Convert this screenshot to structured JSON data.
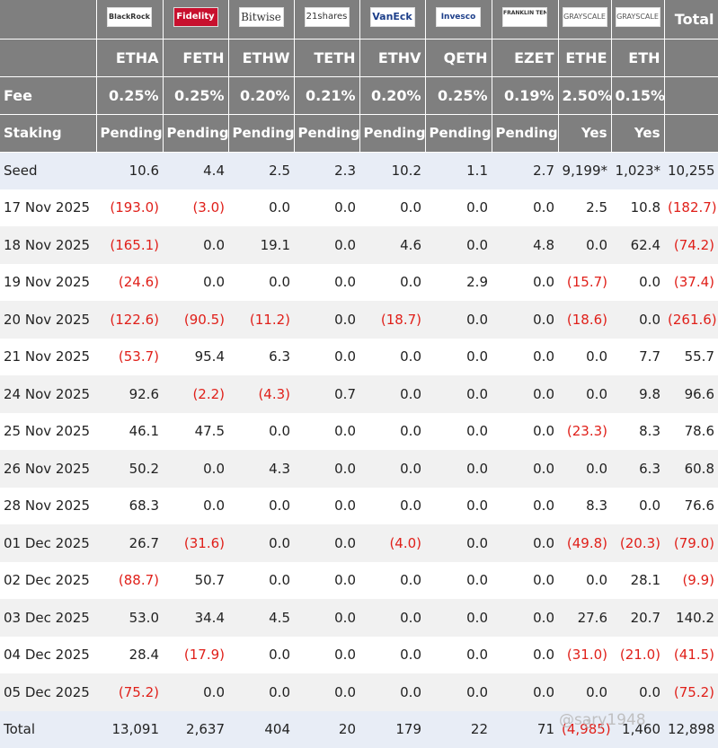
{
  "colors": {
    "header_bg": "#7f7f7f",
    "negative": "#e0201a",
    "seed_row_bg": "#e8edf6",
    "stripe_bg": "#f1f1f1"
  },
  "header": {
    "issuers": [
      "BlackRock",
      "Fidelity",
      "Bitwise",
      "21shares",
      "VanEck",
      "Invesco",
      "FRANKLIN TEMPLETON",
      "GRAYSCALE",
      "GRAYSCALE"
    ],
    "total_label": "Total",
    "tickers": [
      "ETHA",
      "FETH",
      "ETHW",
      "TETH",
      "ETHV",
      "QETH",
      "EZET",
      "ETHE",
      "ETH"
    ],
    "fee_label": "Fee",
    "fees": [
      "0.25%",
      "0.25%",
      "0.20%",
      "0.21%",
      "0.20%",
      "0.25%",
      "0.19%",
      "2.50%",
      "0.15%"
    ],
    "staking_label": "Staking",
    "staking": [
      "Pending",
      "Pending",
      "Pending",
      "Pending",
      "Pending",
      "Pending",
      "Pending",
      "Yes",
      "Yes"
    ]
  },
  "chart_data": {
    "type": "table",
    "columns": [
      "ETHA",
      "FETH",
      "ETHW",
      "TETH",
      "ETHV",
      "QETH",
      "EZET",
      "ETHE",
      "ETH",
      "Total"
    ],
    "rows": [
      {
        "label": "Seed",
        "cells": [
          "10.6",
          "4.4",
          "2.5",
          "2.3",
          "10.2",
          "1.1",
          "2.7",
          "9,199*",
          "1,023*",
          "10,255"
        ]
      },
      {
        "label": "17 Nov 2025",
        "cells": [
          "(193.0)",
          "(3.0)",
          "0.0",
          "0.0",
          "0.0",
          "0.0",
          "0.0",
          "2.5",
          "10.8",
          "(182.7)"
        ]
      },
      {
        "label": "18 Nov 2025",
        "cells": [
          "(165.1)",
          "0.0",
          "19.1",
          "0.0",
          "4.6",
          "0.0",
          "4.8",
          "0.0",
          "62.4",
          "(74.2)"
        ]
      },
      {
        "label": "19 Nov 2025",
        "cells": [
          "(24.6)",
          "0.0",
          "0.0",
          "0.0",
          "0.0",
          "2.9",
          "0.0",
          "(15.7)",
          "0.0",
          "(37.4)"
        ]
      },
      {
        "label": "20 Nov 2025",
        "cells": [
          "(122.6)",
          "(90.5)",
          "(11.2)",
          "0.0",
          "(18.7)",
          "0.0",
          "0.0",
          "(18.6)",
          "0.0",
          "(261.6)"
        ]
      },
      {
        "label": "21 Nov 2025",
        "cells": [
          "(53.7)",
          "95.4",
          "6.3",
          "0.0",
          "0.0",
          "0.0",
          "0.0",
          "0.0",
          "7.7",
          "55.7"
        ]
      },
      {
        "label": "24 Nov 2025",
        "cells": [
          "92.6",
          "(2.2)",
          "(4.3)",
          "0.7",
          "0.0",
          "0.0",
          "0.0",
          "0.0",
          "9.8",
          "96.6"
        ]
      },
      {
        "label": "25 Nov 2025",
        "cells": [
          "46.1",
          "47.5",
          "0.0",
          "0.0",
          "0.0",
          "0.0",
          "0.0",
          "(23.3)",
          "8.3",
          "78.6"
        ]
      },
      {
        "label": "26 Nov 2025",
        "cells": [
          "50.2",
          "0.0",
          "4.3",
          "0.0",
          "0.0",
          "0.0",
          "0.0",
          "0.0",
          "6.3",
          "60.8"
        ]
      },
      {
        "label": "28 Nov 2025",
        "cells": [
          "68.3",
          "0.0",
          "0.0",
          "0.0",
          "0.0",
          "0.0",
          "0.0",
          "8.3",
          "0.0",
          "76.6"
        ]
      },
      {
        "label": "01 Dec 2025",
        "cells": [
          "26.7",
          "(31.6)",
          "0.0",
          "0.0",
          "(4.0)",
          "0.0",
          "0.0",
          "(49.8)",
          "(20.3)",
          "(79.0)"
        ]
      },
      {
        "label": "02 Dec 2025",
        "cells": [
          "(88.7)",
          "50.7",
          "0.0",
          "0.0",
          "0.0",
          "0.0",
          "0.0",
          "0.0",
          "28.1",
          "(9.9)"
        ]
      },
      {
        "label": "03 Dec 2025",
        "cells": [
          "53.0",
          "34.4",
          "4.5",
          "0.0",
          "0.0",
          "0.0",
          "0.0",
          "27.6",
          "20.7",
          "140.2"
        ]
      },
      {
        "label": "04 Dec 2025",
        "cells": [
          "28.4",
          "(17.9)",
          "0.0",
          "0.0",
          "0.0",
          "0.0",
          "0.0",
          "(31.0)",
          "(21.0)",
          "(41.5)"
        ]
      },
      {
        "label": "05 Dec 2025",
        "cells": [
          "(75.2)",
          "0.0",
          "0.0",
          "0.0",
          "0.0",
          "0.0",
          "0.0",
          "0.0",
          "0.0",
          "(75.2)"
        ]
      },
      {
        "label": "Total",
        "cells": [
          "13,091",
          "2,637",
          "404",
          "20",
          "179",
          "22",
          "71",
          "(4,985)",
          "1,460",
          "12,898"
        ]
      }
    ]
  },
  "watermark": "@sa̵̰ry1948"
}
